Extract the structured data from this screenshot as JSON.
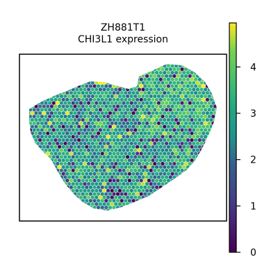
{
  "chart_data": {
    "type": "scatter",
    "title": "ZH881T1",
    "subtitle": "CHI3L1 expression",
    "xlabel": "",
    "ylabel": "",
    "grid": false,
    "colorbar": {
      "colormap": "viridis",
      "range": [
        0,
        4.95
      ],
      "ticks": [
        "0",
        "1",
        "2",
        "3",
        "4"
      ],
      "tick_values": [
        0,
        1,
        2,
        3,
        4
      ]
    },
    "distribution": {
      "description_values": "hexagonal spot grid, per-spot expression values approx. 0-4.9, mostly 2-3.5, higher (3.5-4.5) toward the right lobe",
      "min": 0,
      "max": 4.95,
      "typical": 2.8
    }
  }
}
